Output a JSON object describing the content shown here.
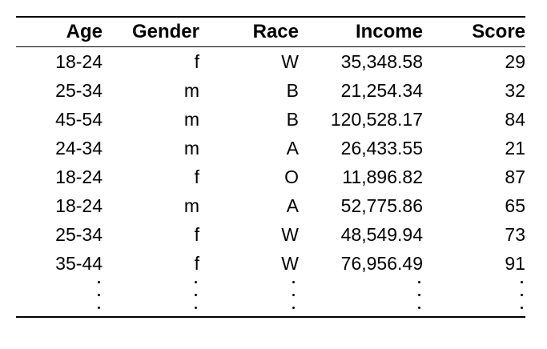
{
  "table": {
    "headers": [
      "Age",
      "Gender",
      "Race",
      "Income",
      "Score"
    ],
    "rows": [
      [
        "18-24",
        "f",
        "W",
        "35,348.58",
        "29"
      ],
      [
        "25-34",
        "m",
        "B",
        "21,254.34",
        "32"
      ],
      [
        "45-54",
        "m",
        "B",
        "120,528.17",
        "84"
      ],
      [
        "24-34",
        "m",
        "A",
        "26,433.55",
        "21"
      ],
      [
        "18-24",
        "f",
        "O",
        "11,896.82",
        "87"
      ],
      [
        "18-24",
        "m",
        "A",
        "52,775.86",
        "65"
      ],
      [
        "25-34",
        "f",
        "W",
        "48,549.94",
        "73"
      ],
      [
        "35-44",
        "f",
        "W",
        "76,956.49",
        "91"
      ]
    ],
    "continuation": "vertical-ellipsis"
  }
}
